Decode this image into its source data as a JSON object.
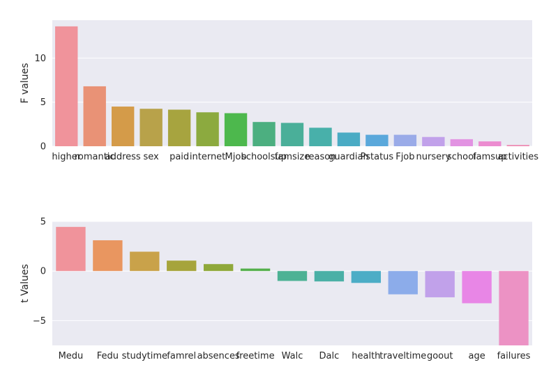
{
  "chart_data": [
    {
      "type": "bar",
      "title": "",
      "xlabel": "",
      "ylabel": "F values",
      "ylim": [
        0,
        14.3
      ],
      "yticks": [
        0,
        5,
        10
      ],
      "ytick_labels": [
        "0",
        "5",
        "10"
      ],
      "grid": true,
      "categories": [
        "higher",
        "romantic",
        "address",
        "sex",
        "paid",
        "internet",
        "Mjob",
        "schoolsup",
        "famsize",
        "reason",
        "guardian",
        "Pstatus",
        "Fjob",
        "nursery",
        "school",
        "famsup",
        "activities"
      ],
      "values": [
        13.6,
        6.8,
        4.5,
        4.25,
        4.15,
        3.85,
        3.75,
        2.75,
        2.65,
        2.1,
        1.55,
        1.3,
        1.3,
        1.05,
        0.8,
        0.55,
        0.15
      ],
      "colors": [
        "#f0939b",
        "#e99276",
        "#d49b49",
        "#b8a24a",
        "#a7a43f",
        "#8caa3f",
        "#4db84d",
        "#4caf80",
        "#4aaf99",
        "#48b0aa",
        "#4aabc4",
        "#5aa8db",
        "#9aabe8",
        "#c1a1ea",
        "#e293e2",
        "#ec8cd0",
        "#ee92b7"
      ]
    },
    {
      "type": "bar",
      "title": "",
      "xlabel": "",
      "ylabel": "t Values",
      "ylim": [
        -7.5,
        5
      ],
      "yticks": [
        -5,
        0,
        5
      ],
      "ytick_labels": [
        "−5",
        "0",
        "5"
      ],
      "grid": true,
      "categories": [
        "Medu",
        "Fedu",
        "studytime",
        "famrel",
        "absences",
        "freetime",
        "Walc",
        "Dalc",
        "health",
        "traveltime",
        "goout",
        "age",
        "failures"
      ],
      "values": [
        4.45,
        3.1,
        1.95,
        1.05,
        0.7,
        0.25,
        -1.0,
        -1.05,
        -1.2,
        -2.35,
        -2.65,
        -3.25,
        -7.5
      ],
      "colors": [
        "#f0939b",
        "#e99660",
        "#c9a24a",
        "#a6a43c",
        "#8fa83a",
        "#55b04d",
        "#4db294",
        "#4bb0a6",
        "#4cadc6",
        "#8cacea",
        "#c1a1ea",
        "#e886e6",
        "#ec92c4"
      ]
    }
  ]
}
